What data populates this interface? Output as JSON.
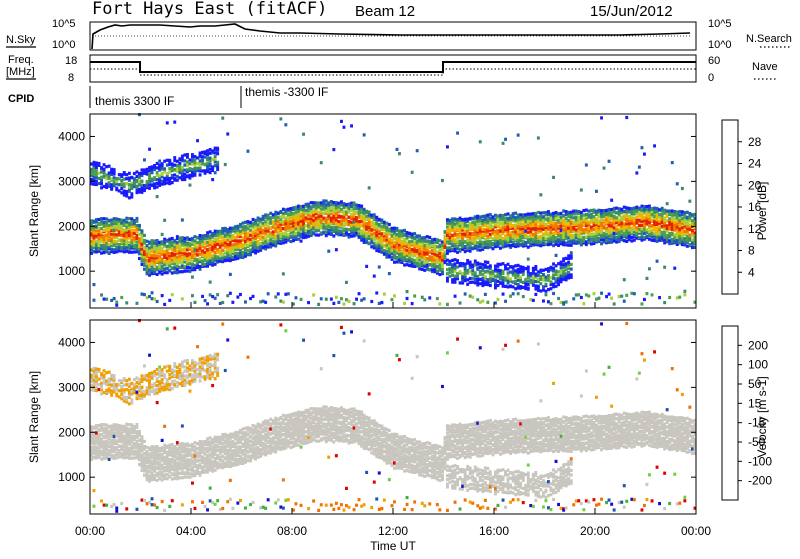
{
  "header": {
    "title": "Fort Hays East (fitACF)",
    "beam": "Beam 12",
    "date": "15/Jun/2012"
  },
  "panels": {
    "nsky": {
      "left_label": "N.Sky",
      "right_label": "N.Search",
      "left_ticks": [
        "10^5",
        "10^0"
      ],
      "right_ticks": [
        "10^5",
        "10^0"
      ]
    },
    "freq": {
      "left_label_1": "Freq.",
      "left_label_2": "[MHz]",
      "right_label": "Nave",
      "left_ticks": [
        "18",
        "8"
      ],
      "right_ticks": [
        "60",
        "0"
      ]
    },
    "cpid": {
      "label": "CPID",
      "segments": [
        "themis 3300 IF",
        "themis -3300 IF"
      ]
    }
  },
  "colors": {
    "axis": "#000000",
    "ground_scatter": "#c8c6be",
    "power_scale": [
      "#1a1aff",
      "#1f5fb0",
      "#3b8a6e",
      "#4ca04c",
      "#a9cf3a",
      "#f0b400",
      "#f07a00",
      "#e82200"
    ],
    "velocity_scale": [
      "#e00000",
      "#f07000",
      "#f0a000",
      "#c8c6be",
      "#c8c6be",
      "#70d040",
      "#40b040",
      "#2050b0",
      "#1010d0"
    ]
  },
  "chart_data": [
    {
      "type": "heatmap",
      "title": "",
      "xlabel": "",
      "ylabel": "Slant Range [km]",
      "colorbar_label": "Power [dB]",
      "colorbar_ticks": [
        "4",
        "8",
        "12",
        "16",
        "20",
        "24",
        "28"
      ],
      "xlim": [
        0,
        24
      ],
      "ylim": [
        180,
        4500
      ],
      "yticks": [
        "1000",
        "2000",
        "3000",
        "4000"
      ],
      "bands": [
        {
          "name": "main",
          "x": [
            0,
            1,
            1.8,
            2.2,
            4,
            6,
            7.5,
            9,
            10.5,
            12,
            13.9,
            14.1,
            16,
            18,
            20,
            22,
            24
          ],
          "center": [
            1780,
            1820,
            1800,
            1300,
            1400,
            1700,
            2000,
            2200,
            2150,
            1600,
            1300,
            1800,
            1900,
            1950,
            2000,
            2100,
            1900
          ],
          "width": 380
        },
        {
          "name": "upper",
          "x": [
            0,
            1.5,
            3,
            5
          ],
          "center": [
            3200,
            2900,
            3200,
            3500
          ],
          "width": 250
        },
        {
          "name": "lower",
          "x": [
            14,
            16,
            18,
            19
          ],
          "center": [
            1000,
            900,
            800,
            1100
          ],
          "width": 250
        }
      ]
    },
    {
      "type": "heatmap",
      "title": "",
      "xlabel": "Time UT",
      "ylabel": "Slant Range [km]",
      "colorbar_label": "Velocity [m s-1]",
      "colorbar_ticks": [
        "-200",
        "-100",
        "-50",
        "-15",
        "15",
        "50",
        "100",
        "200"
      ],
      "xlim": [
        0,
        24
      ],
      "ylim": [
        180,
        4500
      ],
      "yticks": [
        "1000",
        "2000",
        "3000",
        "4000"
      ],
      "xticks": [
        "00:00",
        "04:00",
        "08:00",
        "12:00",
        "16:00",
        "20:00",
        "00:00"
      ]
    }
  ]
}
